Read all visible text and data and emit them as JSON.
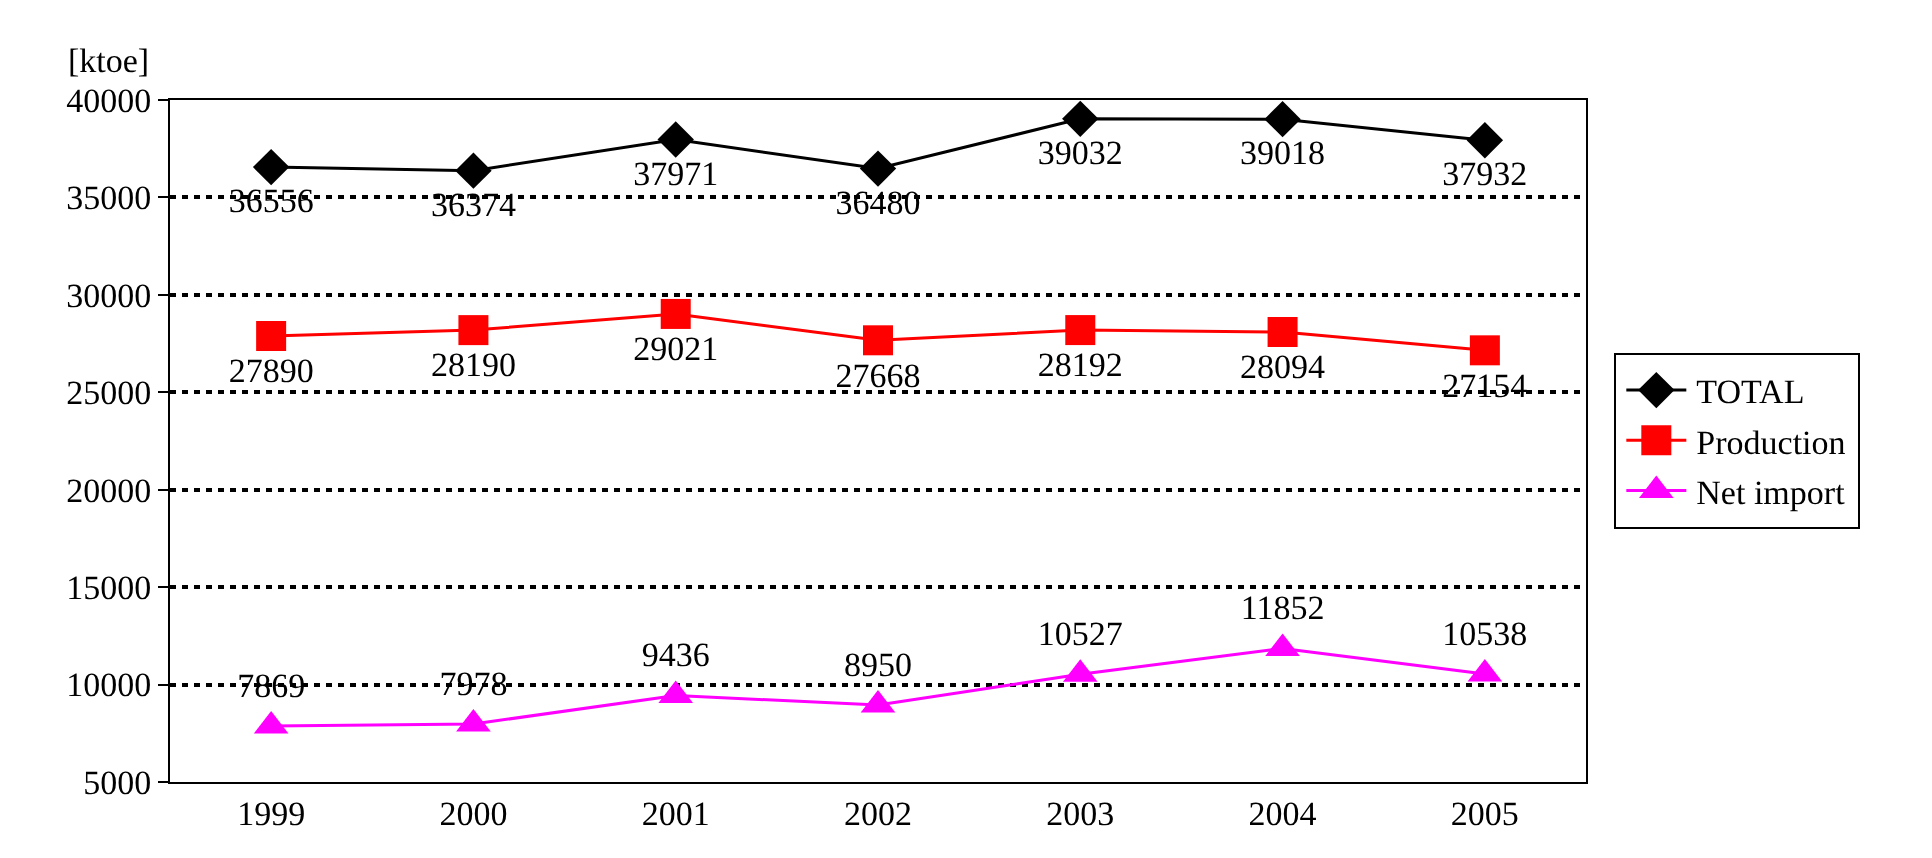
{
  "chart_data": {
    "type": "line",
    "ylabel": "[ktoe]",
    "categories": [
      "1999",
      "2000",
      "2001",
      "2002",
      "2003",
      "2004",
      "2005"
    ],
    "series": [
      {
        "name": "TOTAL",
        "color": "#000000",
        "marker": "diamond",
        "values": [
          36556,
          36374,
          37971,
          36480,
          39032,
          39018,
          37932
        ]
      },
      {
        "name": "Production",
        "color": "#ff0000",
        "marker": "square",
        "values": [
          27890,
          28190,
          29021,
          27668,
          28192,
          28094,
          27154
        ]
      },
      {
        "name": "Net import",
        "color": "#ff00ff",
        "marker": "triangle",
        "values": [
          7869,
          7978,
          9436,
          8950,
          10527,
          11852,
          10538
        ]
      }
    ],
    "ylim": [
      5000,
      40000
    ],
    "yticks": [
      5000,
      10000,
      15000,
      20000,
      25000,
      30000,
      35000,
      40000
    ],
    "grid": "y",
    "legend": "right",
    "data_labels": true,
    "line_style": "solid"
  }
}
